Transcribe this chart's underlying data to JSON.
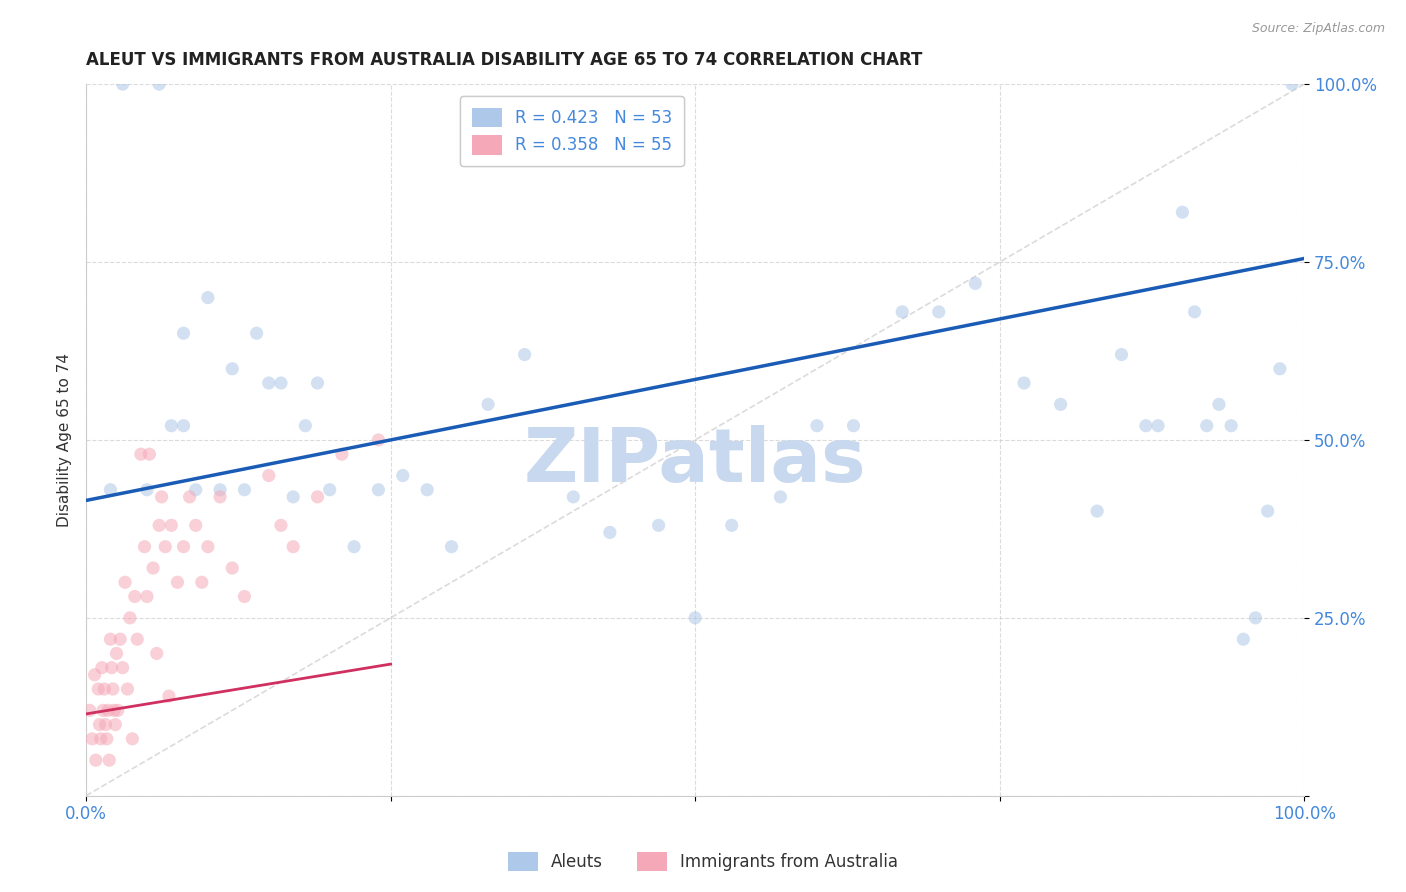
{
  "title": "ALEUT VS IMMIGRANTS FROM AUSTRALIA DISABILITY AGE 65 TO 74 CORRELATION CHART",
  "source": "Source: ZipAtlas.com",
  "ylabel": "Disability Age 65 to 74",
  "x_ticks": [
    0.0,
    0.25,
    0.5,
    0.75,
    1.0
  ],
  "x_tick_labels": [
    "0.0%",
    "",
    "",
    "",
    "100.0%"
  ],
  "y_ticks": [
    0.0,
    0.25,
    0.5,
    0.75,
    1.0
  ],
  "y_tick_labels": [
    "",
    "25.0%",
    "50.0%",
    "75.0%",
    "100.0%"
  ],
  "legend_blue_R": "0.423",
  "legend_blue_N": "53",
  "legend_pink_R": "0.358",
  "legend_pink_N": "55",
  "legend_label_blue": "Aleuts",
  "legend_label_pink": "Immigrants from Australia",
  "blue_scatter_color": "#adc8e8",
  "pink_scatter_color": "#f5a8b8",
  "blue_line_color": "#1a5cb5",
  "pink_line_color": "#d03060",
  "diagonal_color": "#cccccc",
  "grid_color": "#cccccc",
  "background_color": "#ffffff",
  "aleuts_x": [
    0.02,
    0.03,
    0.05,
    0.06,
    0.07,
    0.08,
    0.08,
    0.09,
    0.1,
    0.11,
    0.12,
    0.13,
    0.14,
    0.15,
    0.16,
    0.17,
    0.18,
    0.19,
    0.2,
    0.22,
    0.24,
    0.26,
    0.28,
    0.3,
    0.33,
    0.36,
    0.4,
    0.43,
    0.47,
    0.5,
    0.53,
    0.57,
    0.6,
    0.63,
    0.67,
    0.7,
    0.73,
    0.77,
    0.8,
    0.83,
    0.85,
    0.87,
    0.88,
    0.9,
    0.91,
    0.92,
    0.93,
    0.94,
    0.95,
    0.96,
    0.97,
    0.98,
    0.99
  ],
  "aleuts_y": [
    0.43,
    1.0,
    0.43,
    1.0,
    0.52,
    0.52,
    0.65,
    0.43,
    0.7,
    0.43,
    0.6,
    0.43,
    0.65,
    0.58,
    0.58,
    0.42,
    0.52,
    0.58,
    0.43,
    0.35,
    0.43,
    0.45,
    0.43,
    0.35,
    0.55,
    0.62,
    0.42,
    0.37,
    0.38,
    0.25,
    0.38,
    0.42,
    0.52,
    0.52,
    0.68,
    0.68,
    0.72,
    0.58,
    0.55,
    0.4,
    0.62,
    0.52,
    0.52,
    0.82,
    0.68,
    0.52,
    0.55,
    0.52,
    0.22,
    0.25,
    0.4,
    0.6,
    1.0
  ],
  "immigrants_x": [
    0.003,
    0.005,
    0.007,
    0.008,
    0.01,
    0.011,
    0.012,
    0.013,
    0.014,
    0.015,
    0.016,
    0.017,
    0.018,
    0.019,
    0.02,
    0.021,
    0.022,
    0.023,
    0.024,
    0.025,
    0.026,
    0.028,
    0.03,
    0.032,
    0.034,
    0.036,
    0.038,
    0.04,
    0.042,
    0.045,
    0.048,
    0.05,
    0.052,
    0.055,
    0.058,
    0.06,
    0.062,
    0.065,
    0.068,
    0.07,
    0.075,
    0.08,
    0.085,
    0.09,
    0.095,
    0.1,
    0.11,
    0.12,
    0.13,
    0.15,
    0.16,
    0.17,
    0.19,
    0.21,
    0.24
  ],
  "immigrants_y": [
    0.12,
    0.08,
    0.17,
    0.05,
    0.15,
    0.1,
    0.08,
    0.18,
    0.12,
    0.15,
    0.1,
    0.08,
    0.12,
    0.05,
    0.22,
    0.18,
    0.15,
    0.12,
    0.1,
    0.2,
    0.12,
    0.22,
    0.18,
    0.3,
    0.15,
    0.25,
    0.08,
    0.28,
    0.22,
    0.48,
    0.35,
    0.28,
    0.48,
    0.32,
    0.2,
    0.38,
    0.42,
    0.35,
    0.14,
    0.38,
    0.3,
    0.35,
    0.42,
    0.38,
    0.3,
    0.35,
    0.42,
    0.32,
    0.28,
    0.45,
    0.38,
    0.35,
    0.42,
    0.48,
    0.5
  ],
  "blue_line_x0": 0.0,
  "blue_line_y0": 0.415,
  "blue_line_x1": 1.0,
  "blue_line_y1": 0.755,
  "pink_line_x0": 0.0,
  "pink_line_y0": 0.115,
  "pink_line_x1": 0.25,
  "pink_line_y1": 0.185,
  "marker_size": 90,
  "marker_alpha": 0.55,
  "watermark_text": "ZIPatlas",
  "watermark_color": "#c8d8ee",
  "watermark_fontsize": 54
}
